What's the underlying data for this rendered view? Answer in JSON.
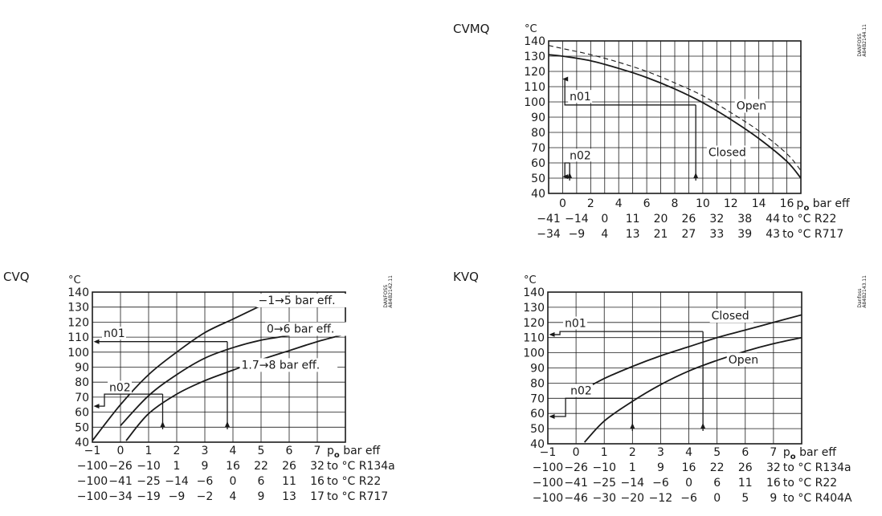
{
  "chart_data": [
    {
      "id": "cvmq",
      "type": "line",
      "title": "CVMQ",
      "code": "DANFOSS\nA84B2144.11",
      "ylabel": "°C",
      "yticks": [
        40,
        50,
        60,
        70,
        80,
        90,
        100,
        110,
        120,
        130,
        140
      ],
      "ylim": [
        40,
        140
      ],
      "xlim": [
        -1,
        17
      ],
      "xgrid": [
        -1,
        0,
        1,
        2,
        3,
        4,
        5,
        6,
        7,
        8,
        9,
        10,
        11,
        12,
        13,
        14,
        15,
        16,
        17
      ],
      "xticks": [
        0,
        2,
        4,
        6,
        8,
        10,
        12,
        14,
        16
      ],
      "xlabel_po": "p",
      "xlabel_sub": "o",
      "xlabel_rest": " bar eff",
      "extra_rows": [
        {
          "x": [
            -1,
            1,
            3,
            5,
            7,
            9,
            11,
            13,
            15
          ],
          "labels": [
            "−41",
            "−14",
            "0",
            "11",
            "20",
            "26",
            "32",
            "38",
            "44"
          ],
          "suffix": "to °C R22"
        },
        {
          "x": [
            -1,
            1,
            3,
            5,
            7,
            9,
            11,
            13,
            15
          ],
          "labels": [
            "−34",
            "−9",
            "4",
            "13",
            "21",
            "27",
            "33",
            "39",
            "43"
          ],
          "suffix": "to °C R717"
        }
      ],
      "series": [
        {
          "name": "Closed",
          "style": "solid",
          "x": [
            -1,
            0,
            2,
            4,
            6,
            8,
            10,
            12,
            14,
            16,
            17
          ],
          "y": [
            131,
            130,
            127,
            122,
            116,
            108.5,
            99.5,
            88.5,
            76,
            61,
            50
          ]
        },
        {
          "name": "Open",
          "style": "dashed",
          "x": [
            -1,
            0,
            2,
            4,
            6,
            8,
            10,
            12,
            14,
            16,
            17
          ],
          "y": [
            137,
            135,
            131,
            126,
            120,
            112.5,
            104,
            93,
            81,
            66,
            55
          ]
        }
      ],
      "annotations": [
        {
          "text": "n01",
          "x": 0.5,
          "y": 101,
          "lead_y": 98,
          "lead_end_x": 9.5,
          "from_x": 0.1,
          "level_y": 115
        },
        {
          "text": "n02",
          "x": 0.5,
          "y": 62.5,
          "lead_y": 60,
          "lead_end_x": 0.5,
          "from_x": 0.1,
          "level_y": 51
        },
        {
          "text": "Open",
          "x": 12.4,
          "y": 95
        },
        {
          "text": "Closed",
          "x": 10.4,
          "y": 64.5
        }
      ]
    },
    {
      "id": "cvq",
      "type": "line",
      "title": "CVQ",
      "code": "DANFOSS\nA84B2142.11",
      "ylabel": "°C",
      "yticks": [
        40,
        50,
        60,
        70,
        80,
        90,
        100,
        110,
        120,
        130,
        140
      ],
      "ylim": [
        40,
        140
      ],
      "xlim": [
        -1,
        8
      ],
      "xgrid": [
        -1,
        0,
        1,
        2,
        3,
        4,
        5,
        6,
        7,
        8
      ],
      "xticks": [
        -1,
        0,
        1,
        2,
        3,
        4,
        5,
        6,
        7
      ],
      "xtick_labels": [
        "−1",
        "0",
        "1",
        "2",
        "3",
        "4",
        "5",
        "6",
        "7"
      ],
      "xlabel_po": "p",
      "xlabel_sub": "o",
      "xlabel_rest": " bar eff",
      "extra_rows": [
        {
          "x": [
            -1,
            0,
            1,
            2,
            3,
            4,
            5,
            6,
            7
          ],
          "labels": [
            "−100",
            "−26",
            "−10",
            "1",
            "9",
            "16",
            "22",
            "26",
            "32"
          ],
          "suffix": "to °C R134a"
        },
        {
          "x": [
            -1,
            0,
            1,
            2,
            3,
            4,
            5,
            6,
            7
          ],
          "labels": [
            "−100",
            "−41",
            "−25",
            "−14",
            "−6",
            "0",
            "6",
            "11",
            "16"
          ],
          "suffix": "to °C R22"
        },
        {
          "x": [
            -1,
            0,
            1,
            2,
            3,
            4,
            5,
            6,
            7
          ],
          "labels": [
            "−100",
            "−34",
            "−19",
            "−9",
            "−2",
            "4",
            "9",
            "13",
            "17"
          ],
          "suffix": "to °C R717"
        }
      ],
      "series": [
        {
          "name": "−1→5 bar eff.",
          "style": "solid",
          "x": [
            -1,
            0,
            1,
            2,
            3,
            4,
            5
          ],
          "y": [
            41,
            65,
            85,
            100,
            113,
            122,
            131
          ]
        },
        {
          "name": "0→6 bar eff.",
          "style": "solid",
          "x": [
            0,
            1,
            2,
            3,
            4,
            5,
            6
          ],
          "y": [
            51,
            71,
            85,
            96,
            103,
            108,
            111
          ]
        },
        {
          "name": "1.7→8 bar eff.",
          "style": "solid",
          "x": [
            0.2,
            1,
            2,
            3,
            4,
            5,
            6,
            7,
            8
          ],
          "y": [
            41,
            59,
            72,
            81,
            88,
            95,
            101,
            107,
            112
          ]
        }
      ],
      "annotations": [
        {
          "text": "n01",
          "x": -0.6,
          "y": 110,
          "lead_y": 107,
          "lead_end_x": 3.8,
          "from_x": -0.9,
          "level_y": 107
        },
        {
          "text": "n02",
          "x": -0.4,
          "y": 74,
          "lead_y": 72,
          "lead_end_x": 1.5,
          "from_x": -0.9,
          "level_y": 64
        },
        {
          "text": "−1→5 bar eff.",
          "x": 4.9,
          "y": 132
        },
        {
          "text": "0→6 bar eff.",
          "x": 5.2,
          "y": 113
        },
        {
          "text": "1.7→8 bar eff.",
          "x": 4.3,
          "y": 89
        }
      ]
    },
    {
      "id": "kvq",
      "type": "line",
      "title": "KVQ",
      "code": "Danfoss\nA84B2143.11",
      "ylabel": "°C",
      "yticks": [
        40,
        50,
        60,
        70,
        80,
        90,
        100,
        110,
        120,
        130,
        140
      ],
      "ylim": [
        40,
        140
      ],
      "xlim": [
        -1,
        8
      ],
      "xgrid": [
        -1,
        0,
        1,
        2,
        3,
        4,
        5,
        6,
        7,
        8
      ],
      "xticks": [
        -1,
        0,
        1,
        2,
        3,
        4,
        5,
        6,
        7
      ],
      "xtick_labels": [
        "−1",
        "0",
        "1",
        "2",
        "3",
        "4",
        "5",
        "6",
        "7"
      ],
      "xlabel_po": "p",
      "xlabel_sub": "o",
      "xlabel_rest": " bar eff",
      "extra_rows": [
        {
          "x": [
            -1,
            0,
            1,
            2,
            3,
            4,
            5,
            6,
            7
          ],
          "labels": [
            "−100",
            "−26",
            "−10",
            "1",
            "9",
            "16",
            "22",
            "26",
            "32"
          ],
          "suffix": "to °C R134a"
        },
        {
          "x": [
            -1,
            0,
            1,
            2,
            3,
            4,
            5,
            6,
            7
          ],
          "labels": [
            "−100",
            "−41",
            "−25",
            "−14",
            "−6",
            "0",
            "6",
            "11",
            "16"
          ],
          "suffix": "to °C R22"
        },
        {
          "x": [
            -1,
            0,
            1,
            2,
            3,
            4,
            5,
            6,
            7
          ],
          "labels": [
            "−100",
            "−46",
            "−30",
            "−20",
            "−12",
            "−6",
            "0",
            "5",
            "9"
          ],
          "suffix": "to °C R404A"
        }
      ],
      "series": [
        {
          "name": "Closed",
          "style": "solid",
          "x": [
            0,
            1,
            2,
            3,
            4,
            5,
            6,
            7,
            8
          ],
          "y": [
            73,
            83,
            91,
            98,
            104,
            110,
            115,
            120,
            125
          ]
        },
        {
          "name": "Open",
          "style": "solid",
          "x": [
            0.3,
            1,
            2,
            3,
            4,
            5,
            6,
            7,
            8
          ],
          "y": [
            41,
            55,
            68,
            79,
            88,
            95,
            101,
            106,
            110
          ]
        }
      ],
      "annotations": [
        {
          "text": "n01",
          "x": -0.4,
          "y": 117,
          "lead_y": 114,
          "lead_end_x": 4.5,
          "from_x": -0.9,
          "level_y": 112
        },
        {
          "text": "n02",
          "x": -0.2,
          "y": 72.5,
          "lead_y": 70,
          "lead_end_x": 2.0,
          "from_x": -0.9,
          "level_y": 58
        },
        {
          "text": "Closed",
          "x": 4.8,
          "y": 122
        },
        {
          "text": "Open",
          "x": 5.4,
          "y": 93
        }
      ]
    }
  ]
}
